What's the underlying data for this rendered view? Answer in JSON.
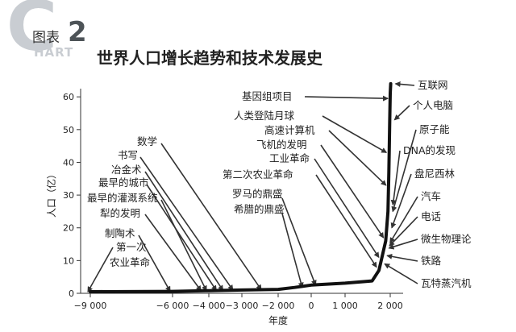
{
  "header": {
    "badge_big_letter": "C",
    "badge_word": "HART",
    "badge_label": "图表",
    "badge_number": "2",
    "title": "世界人口增长趋势和技术发展史"
  },
  "chart_data": {
    "type": "line",
    "xlabel": "年度",
    "ylabel": "人口（亿）",
    "xlim": [
      -9300,
      2600
    ],
    "ylim": [
      0,
      63
    ],
    "x_ticks": [
      -9000,
      -6000,
      -4000,
      -3000,
      -2000,
      0,
      1000,
      2000
    ],
    "x_tick_labels": [
      "−9 000",
      "−6 000",
      "−4 000",
      "−3 000",
      "−2 000",
      "0",
      "1 000",
      "2 000"
    ],
    "y_ticks": [
      0,
      10,
      20,
      30,
      40,
      50,
      60
    ],
    "y_tick_labels": [
      "0",
      "10",
      "20",
      "30",
      "40",
      "50",
      "60"
    ],
    "grid": false,
    "series": [
      {
        "x": [
          -9000,
          -6000,
          -4000,
          -3000,
          -2000,
          -1000,
          0,
          1000,
          1600,
          1750,
          1800,
          1850,
          1900,
          1950,
          1970,
          1990,
          2000,
          2010
        ],
        "y": [
          0.5,
          0.6,
          0.8,
          1,
          1.2,
          1.8,
          2.5,
          3.1,
          3.8,
          7,
          10,
          13,
          16,
          25,
          37,
          53,
          61,
          64
        ]
      }
    ],
    "annotations": [
      {
        "text": "基因组项目",
        "side": "left",
        "target": [
          2000,
          59.5
        ]
      },
      {
        "text": "人类登陆月球",
        "side": "left",
        "target": [
          1969,
          43
        ]
      },
      {
        "text": "高速计算机",
        "side": "left",
        "target": [
          1960,
          33
        ]
      },
      {
        "text": "飞机的发明",
        "side": "left",
        "target": [
          1903,
          17
        ]
      },
      {
        "text": "工业革命",
        "side": "left",
        "target": [
          1800,
          11
        ]
      },
      {
        "text": "第二次农业革命",
        "side": "left",
        "target": [
          1750,
          8
        ]
      },
      {
        "text": "罗马的鼎盛",
        "side": "left",
        "target": [
          200,
          2.5
        ]
      },
      {
        "text": "希腊的鼎盛",
        "side": "left",
        "target": [
          -400,
          1.8
        ]
      },
      {
        "text": "数学",
        "side": "left",
        "target": [
          -2400,
          1.1
        ]
      },
      {
        "text": "书写",
        "side": "left",
        "target": [
          -3200,
          1
        ]
      },
      {
        "text": "冶金术",
        "side": "left",
        "target": [
          -3500,
          0.9
        ]
      },
      {
        "text": "最早的城市",
        "side": "left",
        "target": [
          -3700,
          0.85
        ]
      },
      {
        "text": "最早的灌溉系统",
        "side": "left",
        "target": [
          -4000,
          0.8
        ]
      },
      {
        "text": "犁的发明",
        "side": "left",
        "target": [
          -4300,
          0.8
        ]
      },
      {
        "text": "制陶术",
        "side": "left",
        "target": [
          -6000,
          0.6
        ]
      },
      {
        "text": "第一次",
        "side": "left",
        "target": [
          -9000,
          0.5
        ]
      },
      {
        "text": "农业革命",
        "side": "left",
        "target": null
      },
      {
        "text": "互联网",
        "side": "right",
        "target": [
          2010,
          64
        ]
      },
      {
        "text": "个人电脑",
        "side": "right",
        "target": [
          1990,
          53
        ]
      },
      {
        "text": "原子能",
        "side": "right",
        "target": [
          1950,
          25
        ]
      },
      {
        "text": "DNA的发现",
        "side": "right",
        "target": [
          1953,
          27
        ]
      },
      {
        "text": "盘尼西林",
        "side": "right",
        "target": [
          1928,
          20
        ]
      },
      {
        "text": "汽车",
        "side": "right",
        "target": [
          1890,
          15.5
        ]
      },
      {
        "text": "电话",
        "side": "right",
        "target": [
          1876,
          14.5
        ]
      },
      {
        "text": "微生物理论",
        "side": "right",
        "target": [
          1865,
          13.8
        ]
      },
      {
        "text": "铁路",
        "side": "right",
        "target": [
          1825,
          11.5
        ]
      },
      {
        "text": "瓦特蒸汽机",
        "side": "right",
        "target": [
          1770,
          9
        ]
      }
    ]
  }
}
